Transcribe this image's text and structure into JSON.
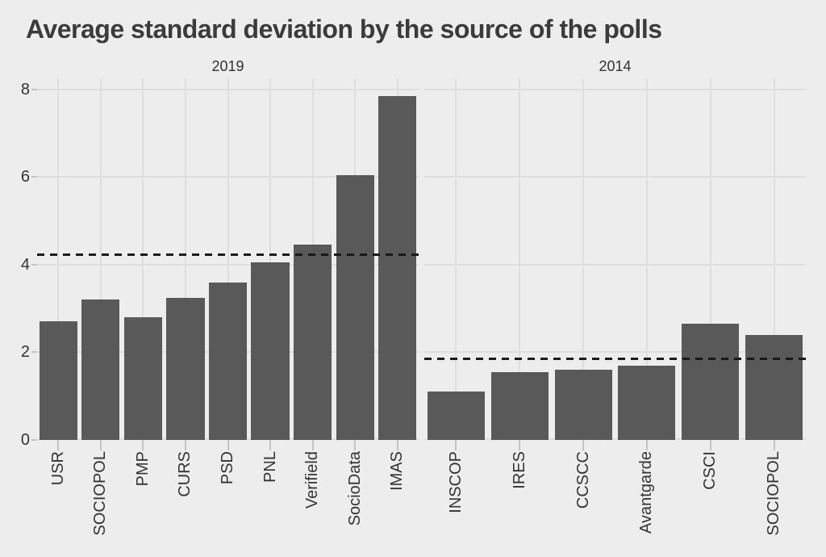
{
  "title": "Average standard deviation by the source of the polls",
  "colors": {
    "background": "#ededed",
    "gridline": "#dedede",
    "tick": "#c4c4c4",
    "bar": "#595959",
    "mean_line": "#1a1a1a",
    "title_text": "#3b3b3b",
    "axis_text": "#333333"
  },
  "chart_data": {
    "type": "bar",
    "title": "Average standard deviation by the source of the polls",
    "xlabel": "",
    "ylabel": "",
    "ylim": [
      0,
      8.25
    ],
    "yticks": [
      0,
      2,
      4,
      6,
      8
    ],
    "grid": "on",
    "legend": "none",
    "bar_color": "#595959",
    "mean_line_style": "dashed",
    "facets": [
      {
        "label": "2019",
        "categories": [
          "USR",
          "SOCIOPOL",
          "PMP",
          "CURS",
          "PSD",
          "PNL",
          "Verifield",
          "SocioData",
          "IMAS"
        ],
        "values": [
          2.7,
          3.2,
          2.8,
          3.25,
          3.6,
          4.05,
          4.45,
          6.05,
          7.85
        ],
        "mean_line": 4.22
      },
      {
        "label": "2014",
        "categories": [
          "INSCOP",
          "IRES",
          "CCSCC",
          "Avantgarde",
          "CSCI",
          "SOCIOPOL"
        ],
        "values": [
          1.1,
          1.55,
          1.6,
          1.7,
          2.65,
          2.4
        ],
        "mean_line": 1.84
      }
    ]
  }
}
